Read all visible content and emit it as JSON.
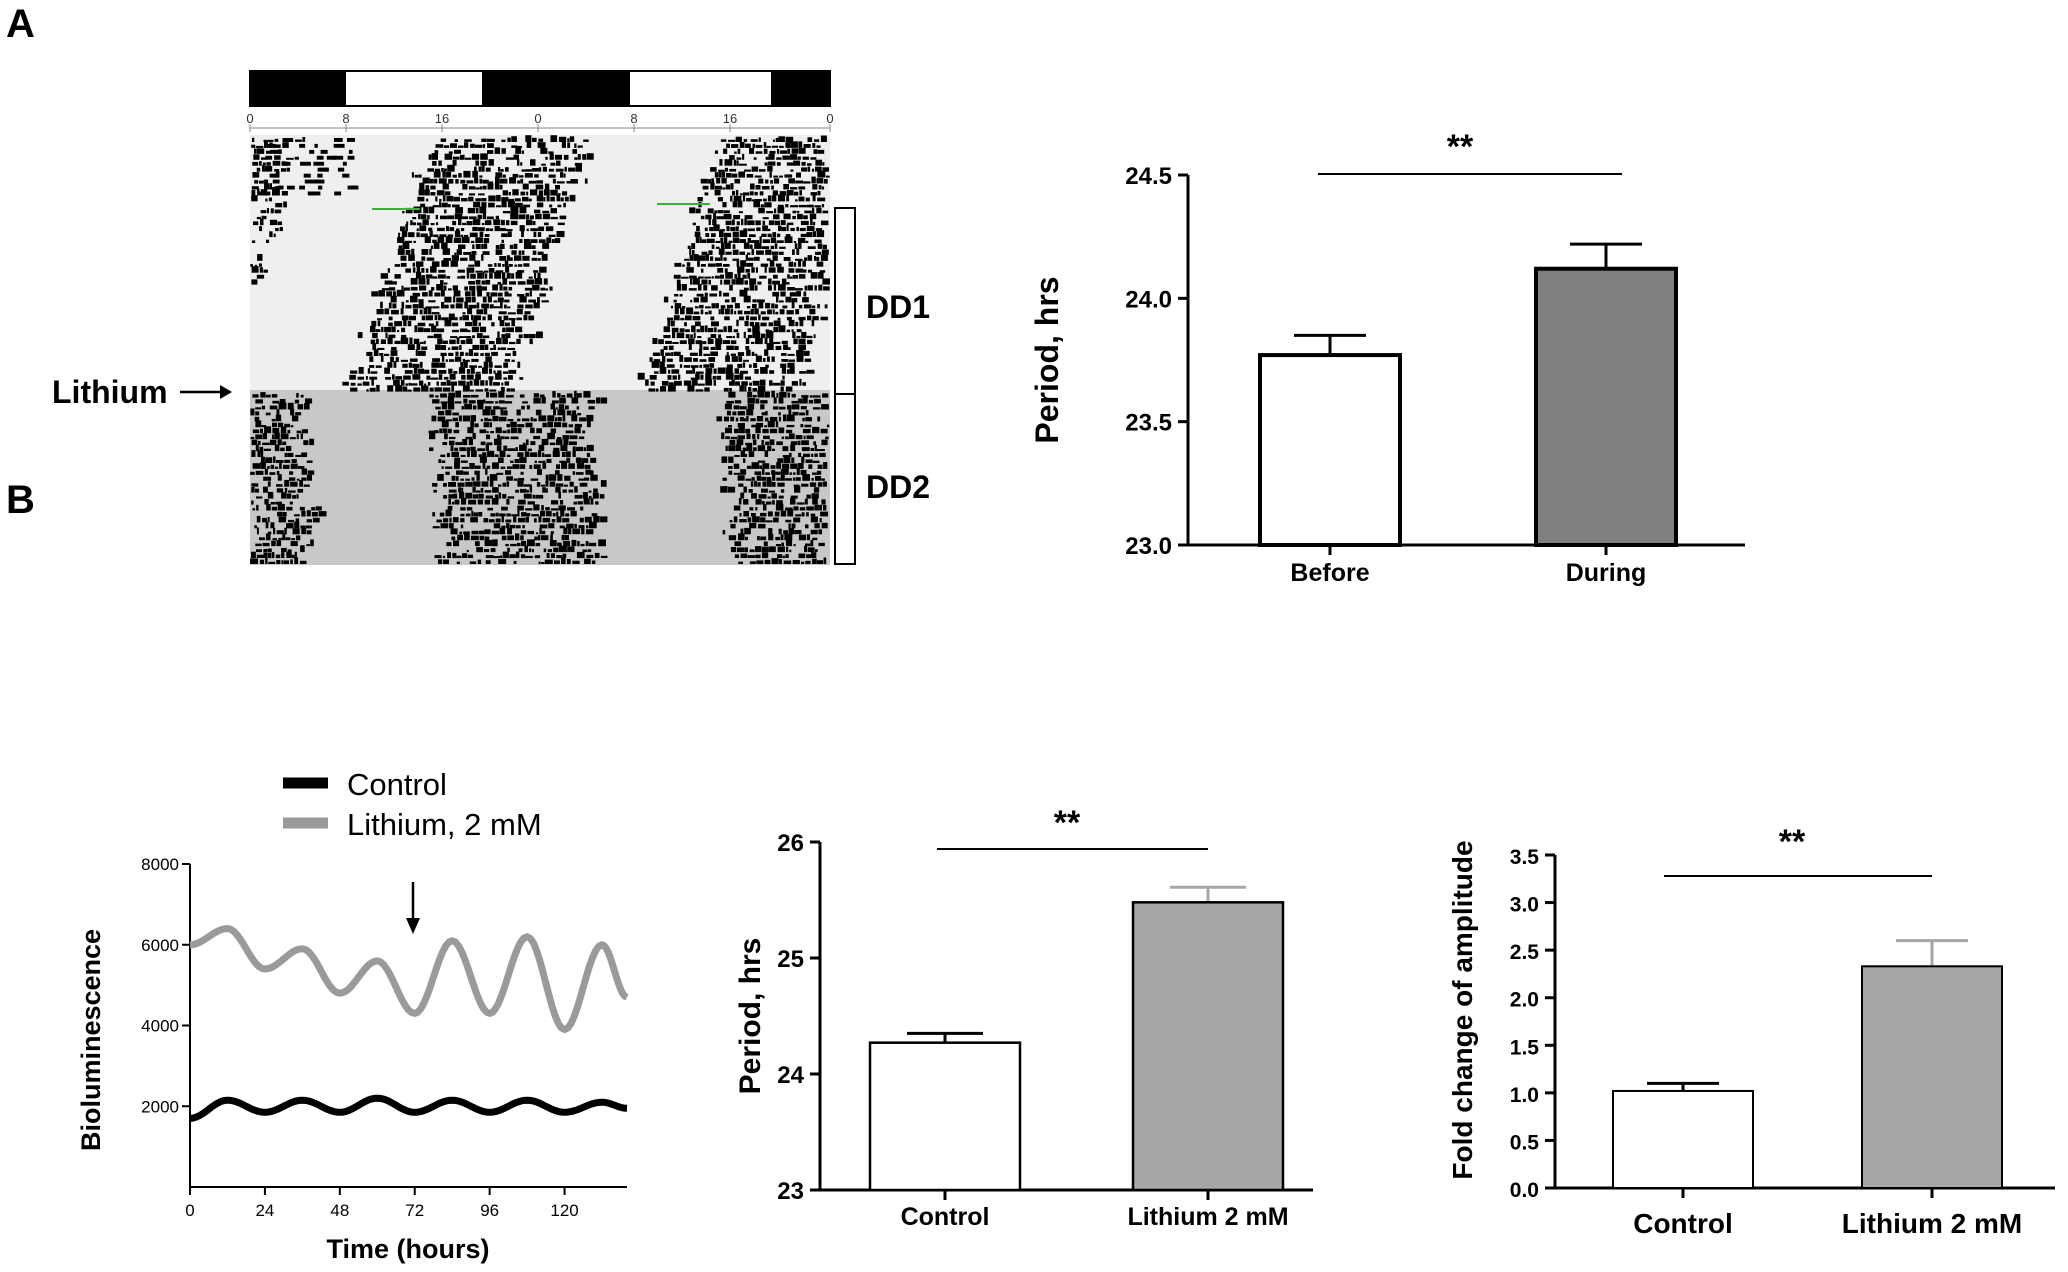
{
  "panels": {
    "a_label": "A",
    "b_label": "B"
  },
  "actogram": {
    "lithium_label": "Lithium",
    "dd1_label": "DD1",
    "dd2_label": "DD2",
    "hour_ticks": [
      "0",
      "8",
      "16",
      "0",
      "8",
      "16",
      "0"
    ]
  },
  "bioluminescence": {
    "legend": [
      "Control",
      "Lithium, 2 mM"
    ]
  },
  "colors": {
    "black": "#000000",
    "gray_bar": "#7f7f7f",
    "light_gray_bar": "#a6a6a8",
    "lithium_trace": "#9a9a9a",
    "dd2_shade": "#c8c8c8"
  },
  "chart_data": [
    {
      "id": "period_before_during",
      "type": "bar",
      "categories": [
        "Before",
        "During"
      ],
      "values": [
        23.77,
        24.12
      ],
      "errors": [
        0.08,
        0.1
      ],
      "bar_colors": [
        "#ffffff",
        "#7f7f7f"
      ],
      "ylabel": "Period, hrs",
      "ylim": [
        23.0,
        24.5
      ],
      "yticks": [
        "23.0",
        "23.5",
        "24.0",
        "24.5"
      ],
      "significance": "**"
    },
    {
      "id": "bioluminescence_trace",
      "type": "line",
      "xlabel": "Time (hours)",
      "ylabel": "Bioluminescence",
      "xlim": [
        0,
        140
      ],
      "ylim": [
        0,
        8000
      ],
      "xticks": [
        "0",
        "24",
        "48",
        "72",
        "96",
        "120"
      ],
      "yticks": [
        "2000",
        "4000",
        "6000",
        "8000"
      ],
      "treatment_marker_x": 72,
      "series": [
        {
          "name": "Control",
          "color": "#000000",
          "x": [
            0,
            12,
            24,
            36,
            48,
            60,
            72,
            84,
            96,
            108,
            120,
            132,
            140
          ],
          "y": [
            1700,
            2150,
            1850,
            2150,
            1850,
            2200,
            1850,
            2150,
            1850,
            2150,
            1850,
            2100,
            1950
          ]
        },
        {
          "name": "Lithium, 2 mM",
          "color": "#9a9a9a",
          "x": [
            0,
            12,
            24,
            36,
            48,
            60,
            72,
            84,
            96,
            108,
            120,
            132,
            140
          ],
          "y": [
            6000,
            6400,
            5400,
            5900,
            4800,
            5600,
            4300,
            6100,
            4300,
            6200,
            3900,
            6000,
            4700
          ]
        }
      ]
    },
    {
      "id": "period_control_lithium",
      "type": "bar",
      "categories": [
        "Control",
        "Lithium 2 mM"
      ],
      "values": [
        24.27,
        25.48
      ],
      "errors": [
        0.08,
        0.13
      ],
      "bar_colors": [
        "#ffffff",
        "#a6a6a8"
      ],
      "ylabel": "Period, hrs",
      "ylim": [
        23,
        26
      ],
      "yticks": [
        "23",
        "24",
        "25",
        "26"
      ],
      "significance": "**"
    },
    {
      "id": "amplitude_fold_change",
      "type": "bar",
      "categories": [
        "Control",
        "Lithium 2 mM"
      ],
      "values": [
        1.02,
        2.33
      ],
      "errors": [
        0.08,
        0.27
      ],
      "bar_colors": [
        "#ffffff",
        "#a6a6a8"
      ],
      "ylabel": "Fold  change of amplitude",
      "ylim": [
        0.0,
        3.5
      ],
      "yticks": [
        "0.0",
        "0.5",
        "1.0",
        "1.5",
        "2.0",
        "2.5",
        "3.0",
        "3.5"
      ],
      "significance": "**"
    }
  ]
}
